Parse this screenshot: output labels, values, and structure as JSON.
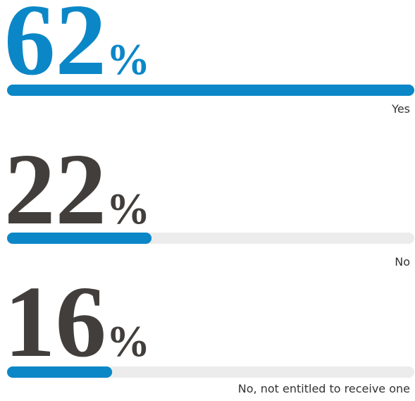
{
  "chart_data": {
    "type": "bar",
    "categories": [
      "Yes",
      "No",
      "No, not entitled to receive one"
    ],
    "values": [
      62,
      22,
      16
    ],
    "value_labels": [
      "62%",
      "22%",
      "16%"
    ],
    "color": "#0b87c7",
    "track_color": "#ececec",
    "value_label_colors": [
      "#0b87c7",
      "#423e3b",
      "#423e3b"
    ],
    "xlim": [
      0,
      62
    ]
  }
}
